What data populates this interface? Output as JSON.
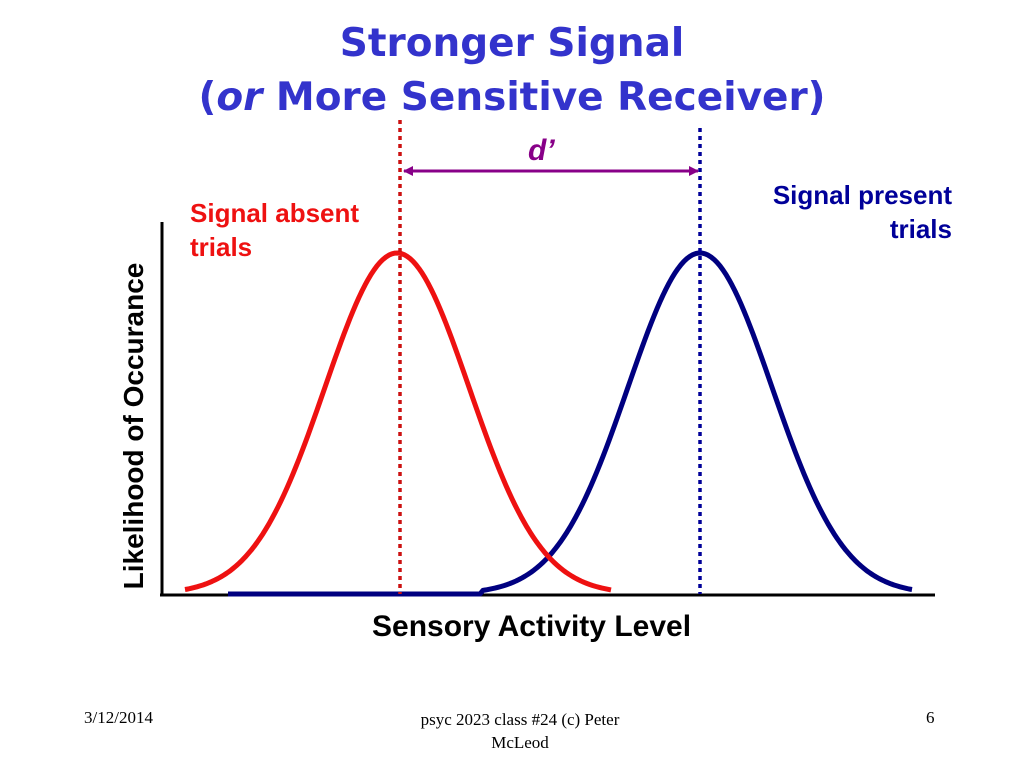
{
  "slide": {
    "title_line1": "Stronger Signal",
    "title_line2_prefix": "(",
    "title_line2_em": "or",
    "title_line2_rest": " More Sensitive Receiver)"
  },
  "diagram": {
    "dprime_label": "d’",
    "absent_label_line1": "Signal absent",
    "absent_label_line2": "trials",
    "present_label_line1": "Signal present",
    "present_label_line2": "trials",
    "x_axis_label": "Sensory Activity Level",
    "y_axis_label": "Likelihood of Occurance",
    "colors": {
      "absent": "#ee1111",
      "present": "#000080",
      "dprime": "#880088",
      "title": "#3333cc"
    }
  },
  "footer": {
    "date": "3/12/2014",
    "center_line1": "psyc 2023 class #24 (c) Peter",
    "center_line2": "McLeod",
    "page": "6"
  }
}
